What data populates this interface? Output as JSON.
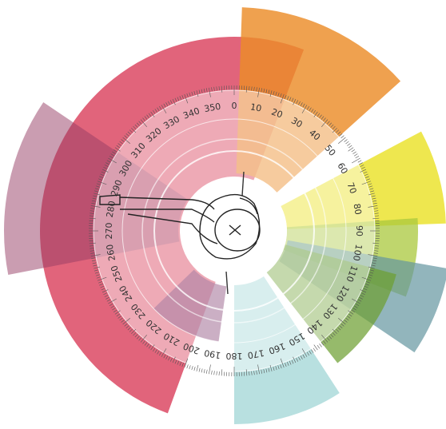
{
  "dial": {
    "degrees": [
      0,
      10,
      20,
      30,
      40,
      50,
      60,
      70,
      80,
      90,
      100,
      110,
      120,
      130,
      140,
      150,
      160,
      170,
      180,
      190,
      200,
      210,
      220,
      230,
      240,
      250,
      260,
      270,
      280,
      290,
      300,
      310,
      320,
      330,
      340,
      350
    ]
  }
}
